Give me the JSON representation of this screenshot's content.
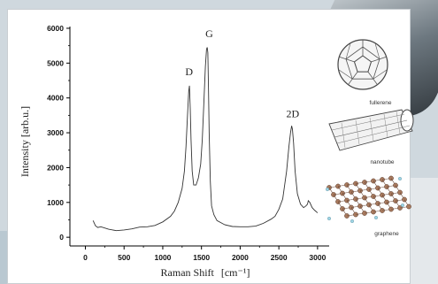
{
  "chart_data": {
    "type": "line",
    "xlabel": "Raman Shift",
    "xlabel_unit": "[cm⁻¹]",
    "ylabel": "Intensity [arb.u.]",
    "xlim": [
      -200,
      3150
    ],
    "ylim": [
      -250,
      6050
    ],
    "xticks": [
      "0",
      "500",
      "1000",
      "1500",
      "2000",
      "2500",
      "3000"
    ],
    "yticks": [
      "0",
      "1000",
      "2000",
      "3000",
      "4000",
      "5000",
      "6000"
    ],
    "grid": false,
    "series": [
      {
        "x": [
          100,
          130,
          160,
          200,
          300,
          400,
          500,
          600,
          700,
          800,
          900,
          1000,
          1100,
          1150,
          1200,
          1250,
          1280,
          1300,
          1320,
          1335,
          1345,
          1355,
          1365,
          1380,
          1400,
          1430,
          1460,
          1490,
          1510,
          1530,
          1550,
          1565,
          1575,
          1582,
          1590,
          1600,
          1615,
          1630,
          1660,
          1700,
          1800,
          1900,
          2000,
          2100,
          2200,
          2300,
          2400,
          2450,
          2500,
          2550,
          2600,
          2630,
          2650,
          2665,
          2675,
          2690,
          2710,
          2740,
          2780,
          2820,
          2850,
          2870,
          2880,
          2900,
          2930,
          2960,
          3000
        ],
        "y": [
          480,
          330,
          280,
          300,
          230,
          190,
          210,
          240,
          290,
          300,
          340,
          440,
          600,
          750,
          1000,
          1400,
          1900,
          2600,
          3500,
          4200,
          4350,
          3700,
          2800,
          1900,
          1500,
          1500,
          1700,
          2100,
          2800,
          3800,
          4900,
          5400,
          5450,
          5300,
          4300,
          3000,
          1600,
          900,
          650,
          480,
          360,
          310,
          300,
          300,
          320,
          400,
          520,
          600,
          800,
          1100,
          1900,
          2600,
          3000,
          3200,
          3100,
          2700,
          1900,
          1250,
          950,
          850,
          900,
          950,
          1050,
          1000,
          850,
          780,
          700
        ]
      }
    ],
    "annotations": [
      {
        "text": "D",
        "x": 1340,
        "y": 4650
      },
      {
        "text": "G",
        "x": 1600,
        "y": 5750
      },
      {
        "text": "2D",
        "x": 2680,
        "y": 3450
      }
    ]
  },
  "insets": [
    {
      "icon": "fullerene-icon",
      "label": "fullerene"
    },
    {
      "icon": "nanotube-icon",
      "label": "nanotube"
    },
    {
      "icon": "graphene-icon",
      "label": "graphene"
    }
  ]
}
